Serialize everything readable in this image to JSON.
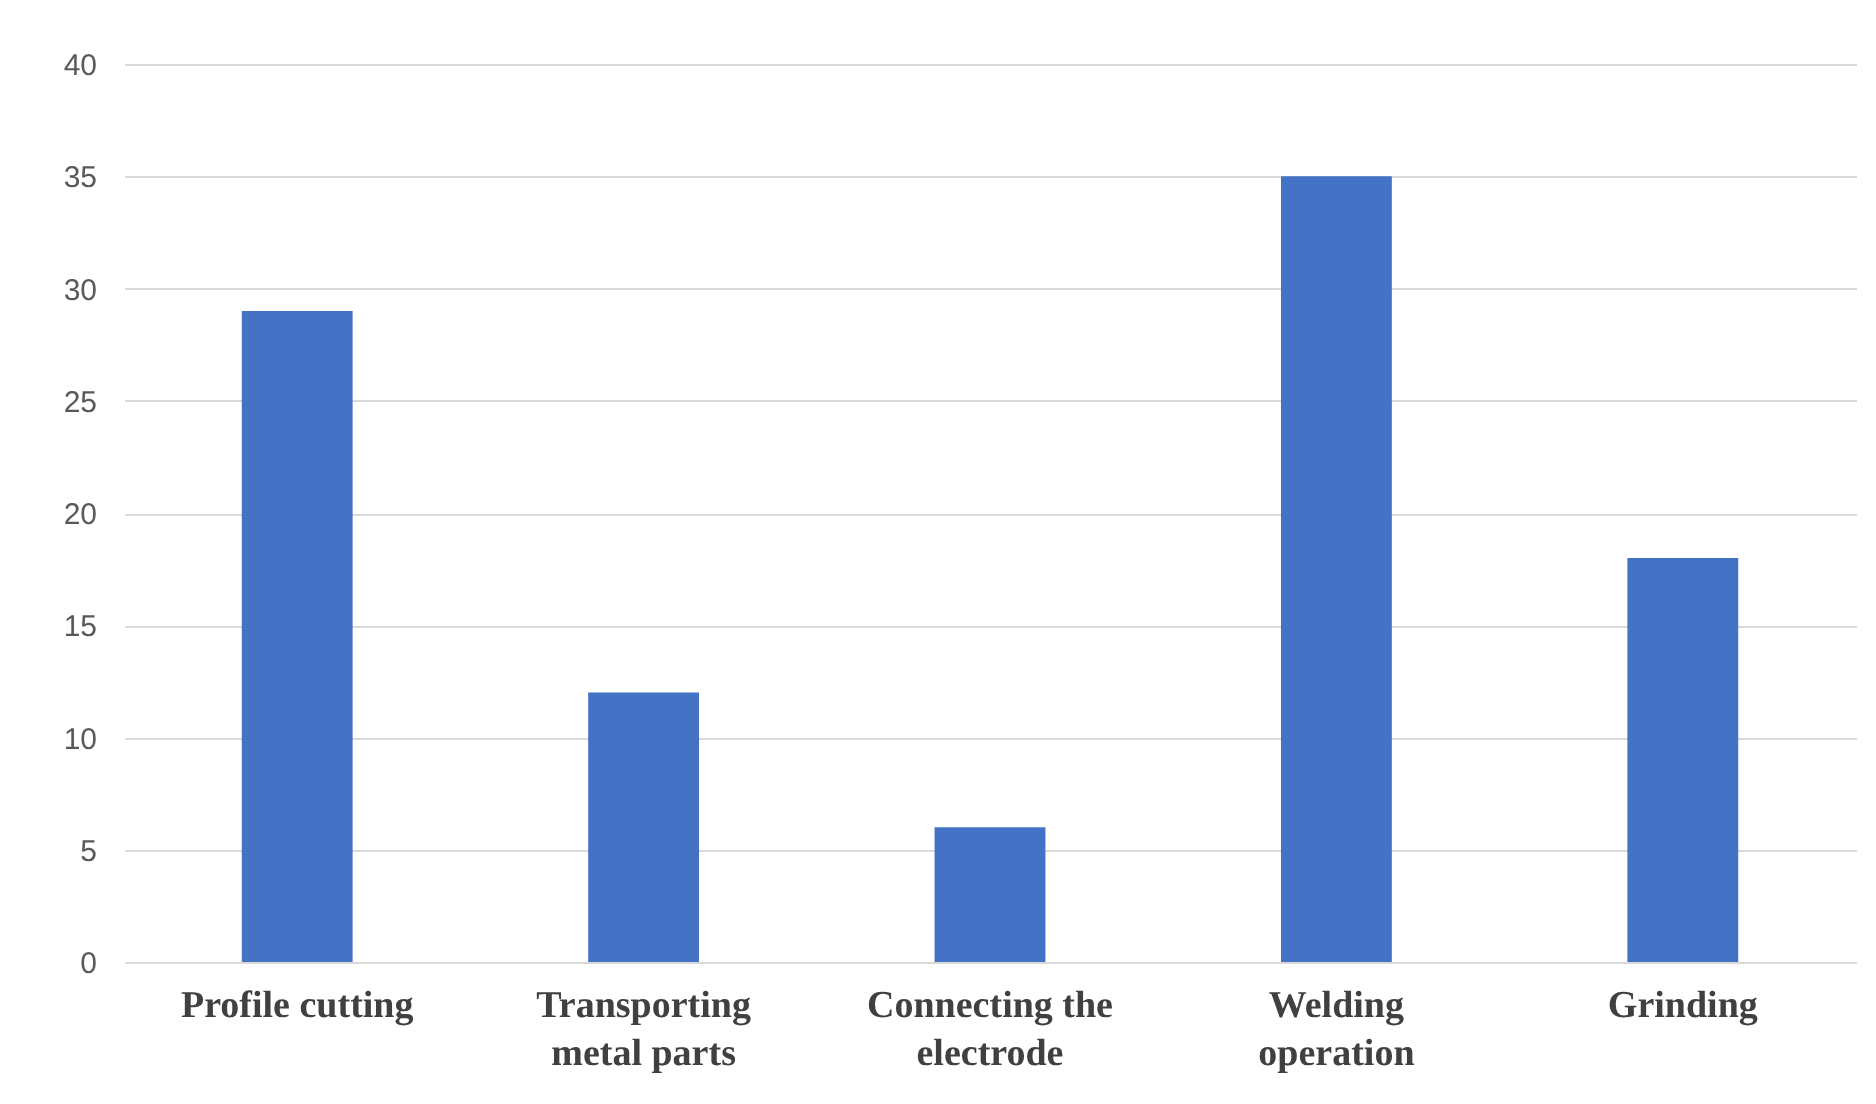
{
  "chart_data": {
    "type": "bar",
    "categories": [
      "Profile cutting",
      "Transporting metal parts",
      "Connecting the electrode",
      "Welding operation",
      "Grinding"
    ],
    "values": [
      29,
      12,
      6,
      35,
      18
    ],
    "color": "#4472c4",
    "ylim": [
      0,
      40
    ],
    "yticks": [
      0,
      5,
      10,
      15,
      20,
      25,
      30,
      35,
      40
    ],
    "grid": "y"
  }
}
